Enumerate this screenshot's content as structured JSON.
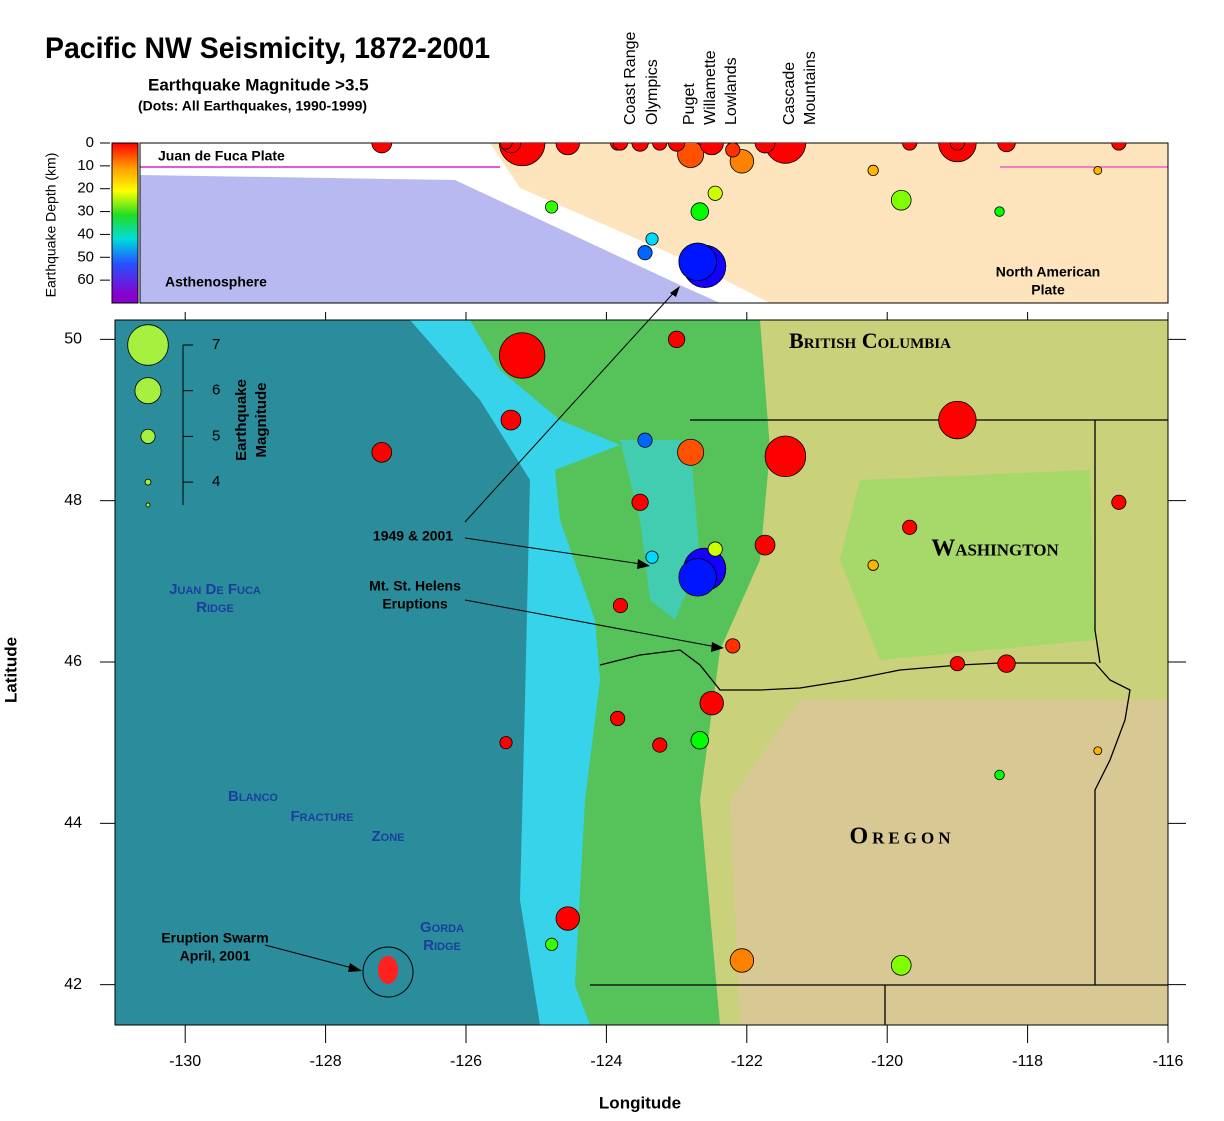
{
  "title": "Pacific NW Seismicity, 1872-2001",
  "subtitle": "Earthquake Magnitude >3.5",
  "note": "(Dots: All Earthquakes, 1990-1999)",
  "column_labels": [
    [
      "Coast Range",
      "Olympics"
    ],
    [
      "Puget",
      "Willamette",
      "Lowlands"
    ],
    [
      "Cascade",
      "Mountains"
    ]
  ],
  "cross_section": {
    "ylabel": "Earthquake Depth (km)",
    "ylim": [
      0,
      70
    ],
    "yticks": [
      0,
      10,
      20,
      30,
      40,
      50,
      60
    ],
    "labels": {
      "plate": "Juan de Fuca Plate",
      "asthenosphere": "Asthenosphere",
      "north_american": [
        "North American",
        "Plate"
      ]
    }
  },
  "map": {
    "xlabel": "Longitude",
    "ylabel": "Latitude",
    "xlim": [
      -131,
      -116
    ],
    "ylim": [
      41.5,
      50.24
    ],
    "xticks": [
      -130,
      -128,
      -126,
      -124,
      -122,
      -120,
      -118,
      -116
    ],
    "yticks": [
      42,
      44,
      46,
      48,
      50
    ],
    "magnitude_legend": {
      "label": [
        "Earthquake",
        "Magnitude"
      ],
      "ticks": [
        4,
        5,
        6,
        7
      ],
      "circles": [
        7,
        6,
        5,
        4,
        3.5
      ]
    },
    "places": {
      "bc": "British Columbia",
      "wa": "Washington",
      "or": "Oregon",
      "jdf": [
        "Juan De Fuca",
        "Ridge"
      ],
      "blanco": [
        "Blanco",
        "Fracture",
        "Zone"
      ],
      "gorda": [
        "Gorda",
        "Ridge"
      ]
    },
    "annotations": {
      "nisqually": "1949 & 2001",
      "helens": [
        "Mt. St. Helens",
        "Eruptions"
      ],
      "swarm": [
        "Eruption Swarm",
        "April, 2001"
      ]
    }
  },
  "earthquakes": [
    {
      "lon": -125.2,
      "lat": 49.8,
      "depth": 0,
      "magnitude": 7.3
    },
    {
      "lon": -122.6,
      "lat": 47.15,
      "depth": 54,
      "magnitude": 7.1
    },
    {
      "lon": -122.7,
      "lat": 47.05,
      "depth": 52,
      "magnitude": 6.8
    },
    {
      "lon": -121.45,
      "lat": 48.55,
      "depth": 0,
      "magnitude": 7.0
    },
    {
      "lon": -119.0,
      "lat": 49.0,
      "depth": 0,
      "magnitude": 6.8
    },
    {
      "lon": -125.36,
      "lat": 49.0,
      "depth": 0,
      "magnitude": 5.5
    },
    {
      "lon": -127.2,
      "lat": 48.6,
      "depth": 0,
      "magnitude": 5.5
    },
    {
      "lon": -123.0,
      "lat": 50.0,
      "depth": 0,
      "magnitude": 5.2
    },
    {
      "lon": -123.52,
      "lat": 47.98,
      "depth": 0,
      "magnitude": 5.2
    },
    {
      "lon": -122.8,
      "lat": 48.6,
      "depth": 5,
      "magnitude": 6.0
    },
    {
      "lon": -123.45,
      "lat": 48.75,
      "depth": 48,
      "magnitude": 5.0
    },
    {
      "lon": -121.74,
      "lat": 47.45,
      "depth": 0,
      "magnitude": 5.5
    },
    {
      "lon": -122.2,
      "lat": 46.2,
      "depth": 3,
      "magnitude": 5.0
    },
    {
      "lon": -122.5,
      "lat": 45.49,
      "depth": 0,
      "magnitude": 5.8
    },
    {
      "lon": -123.84,
      "lat": 45.3,
      "depth": 0,
      "magnitude": 5.0
    },
    {
      "lon": -123.24,
      "lat": 44.97,
      "depth": 0,
      "magnitude": 5.0
    },
    {
      "lon": -122.67,
      "lat": 45.03,
      "depth": 30,
      "magnitude": 5.3
    },
    {
      "lon": -125.43,
      "lat": 45.0,
      "depth": 0,
      "magnitude": 4.8
    },
    {
      "lon": -124.55,
      "lat": 42.82,
      "depth": 0,
      "magnitude": 5.8
    },
    {
      "lon": -124.78,
      "lat": 42.5,
      "depth": 28,
      "magnitude": 4.8
    },
    {
      "lon": -122.07,
      "lat": 42.3,
      "depth": 8,
      "magnitude": 5.8
    },
    {
      "lon": -119.8,
      "lat": 42.24,
      "depth": 25,
      "magnitude": 5.5
    },
    {
      "lon": -116.7,
      "lat": 47.98,
      "depth": 0,
      "magnitude": 5.0
    },
    {
      "lon": -118.3,
      "lat": 45.98,
      "depth": 0,
      "magnitude": 5.3
    },
    {
      "lon": -119.0,
      "lat": 45.98,
      "depth": 0,
      "magnitude": 5.0
    },
    {
      "lon": -119.68,
      "lat": 47.67,
      "depth": 0,
      "magnitude": 5.0
    },
    {
      "lon": -123.35,
      "lat": 47.3,
      "depth": 42,
      "magnitude": 4.8
    },
    {
      "lon": -122.45,
      "lat": 47.4,
      "depth": 22,
      "magnitude": 5.0
    },
    {
      "lon": -120.2,
      "lat": 47.2,
      "depth": 12,
      "magnitude": 4.6
    },
    {
      "lon": -118.4,
      "lat": 44.6,
      "depth": 30,
      "magnitude": 4.5
    },
    {
      "lon": -117.0,
      "lat": 44.9,
      "depth": 12,
      "magnitude": 4.3
    },
    {
      "lon": -123.8,
      "lat": 46.7,
      "depth": 0,
      "magnitude": 5.0
    }
  ]
}
